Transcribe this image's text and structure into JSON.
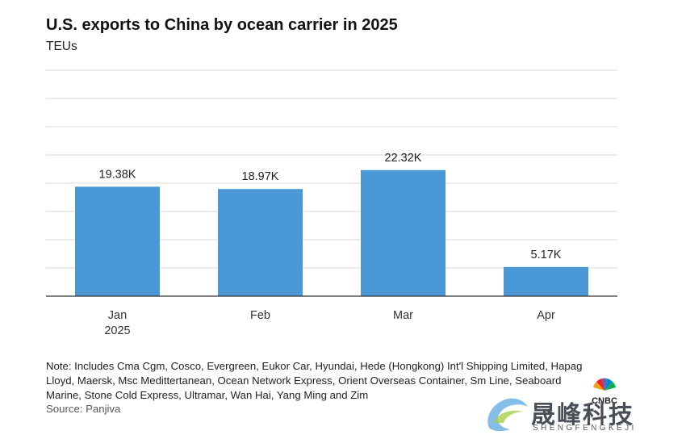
{
  "title": "U.S. exports to China by ocean carrier in 2025",
  "subtitle": "TEUs",
  "note": "Note: Includes Cma Cgm, Cosco, Evergreen, Eukor Car, Hyundai, Hede (Hongkong) Int'l Shipping Limited, Hapag Lloyd, Maersk, Msc Medittertanean, Ocean Network Express, Orient Overseas Container, Sm Line, Seaboard Marine, Stone Cold Express, Ultramar, Wan Hai, Yang Ming and Zim",
  "source": "Source: Panjiva",
  "logos": {
    "cnbc": "CNBC",
    "watermark": "晟峰科技",
    "watermark_sub": "SHENGFENGKEJI"
  },
  "colors": {
    "bar": "#4A98D6",
    "grid": "#d9d9d9",
    "axis": "#333333"
  },
  "chart_data": {
    "type": "bar",
    "title": "U.S. exports to China by ocean carrier in 2025",
    "subtitle": "TEUs",
    "categories": [
      "Jan 2025",
      "Feb",
      "Mar",
      "Apr"
    ],
    "tick_labels": [
      [
        "Jan",
        "2025"
      ],
      [
        "Feb"
      ],
      [
        "Mar"
      ],
      [
        "Apr"
      ]
    ],
    "values": [
      19380,
      18970,
      22320,
      5170
    ],
    "data_labels": [
      "19.38K",
      "18.97K",
      "22.32K",
      "5.17K"
    ],
    "ylim": [
      0,
      40000
    ],
    "grid": true,
    "legend": false
  }
}
